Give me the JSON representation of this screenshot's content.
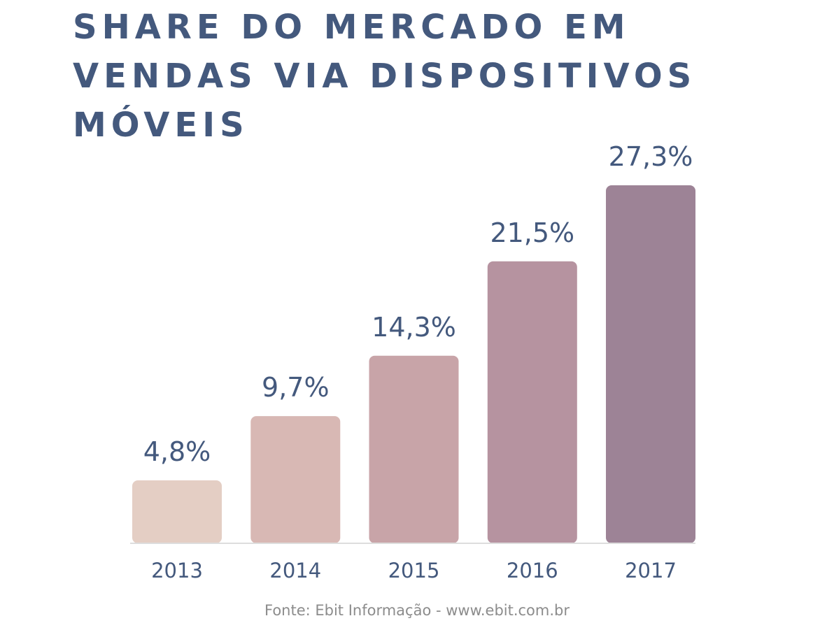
{
  "title_lines": [
    "SHARE DO MERCADO EM",
    "VENDAS VIA DISPOSITIVOS",
    "MÓVEIS"
  ],
  "source": "Fonte: Ebit Informação - www.ebit.com.br",
  "chart_data": {
    "type": "bar",
    "title": "SHARE DO MERCADO EM VENDAS VIA DISPOSITIVOS MÓVEIS",
    "categories": [
      "2013",
      "2014",
      "2015",
      "2016",
      "2017"
    ],
    "values": [
      4.8,
      9.7,
      14.3,
      21.5,
      27.3
    ],
    "value_labels": [
      "4,8%",
      "9,7%",
      "14,3%",
      "21,5%",
      "27,3%"
    ],
    "bar_colors": [
      "#e4cec4",
      "#d8b8b4",
      "#c8a4a8",
      "#b693a0",
      "#9d8396"
    ],
    "xlabel": "",
    "ylabel": "",
    "ylim": [
      0,
      27.3
    ],
    "grid": false,
    "legend": "none",
    "axis_color": "#dddddd",
    "text_color": "#44597d"
  }
}
